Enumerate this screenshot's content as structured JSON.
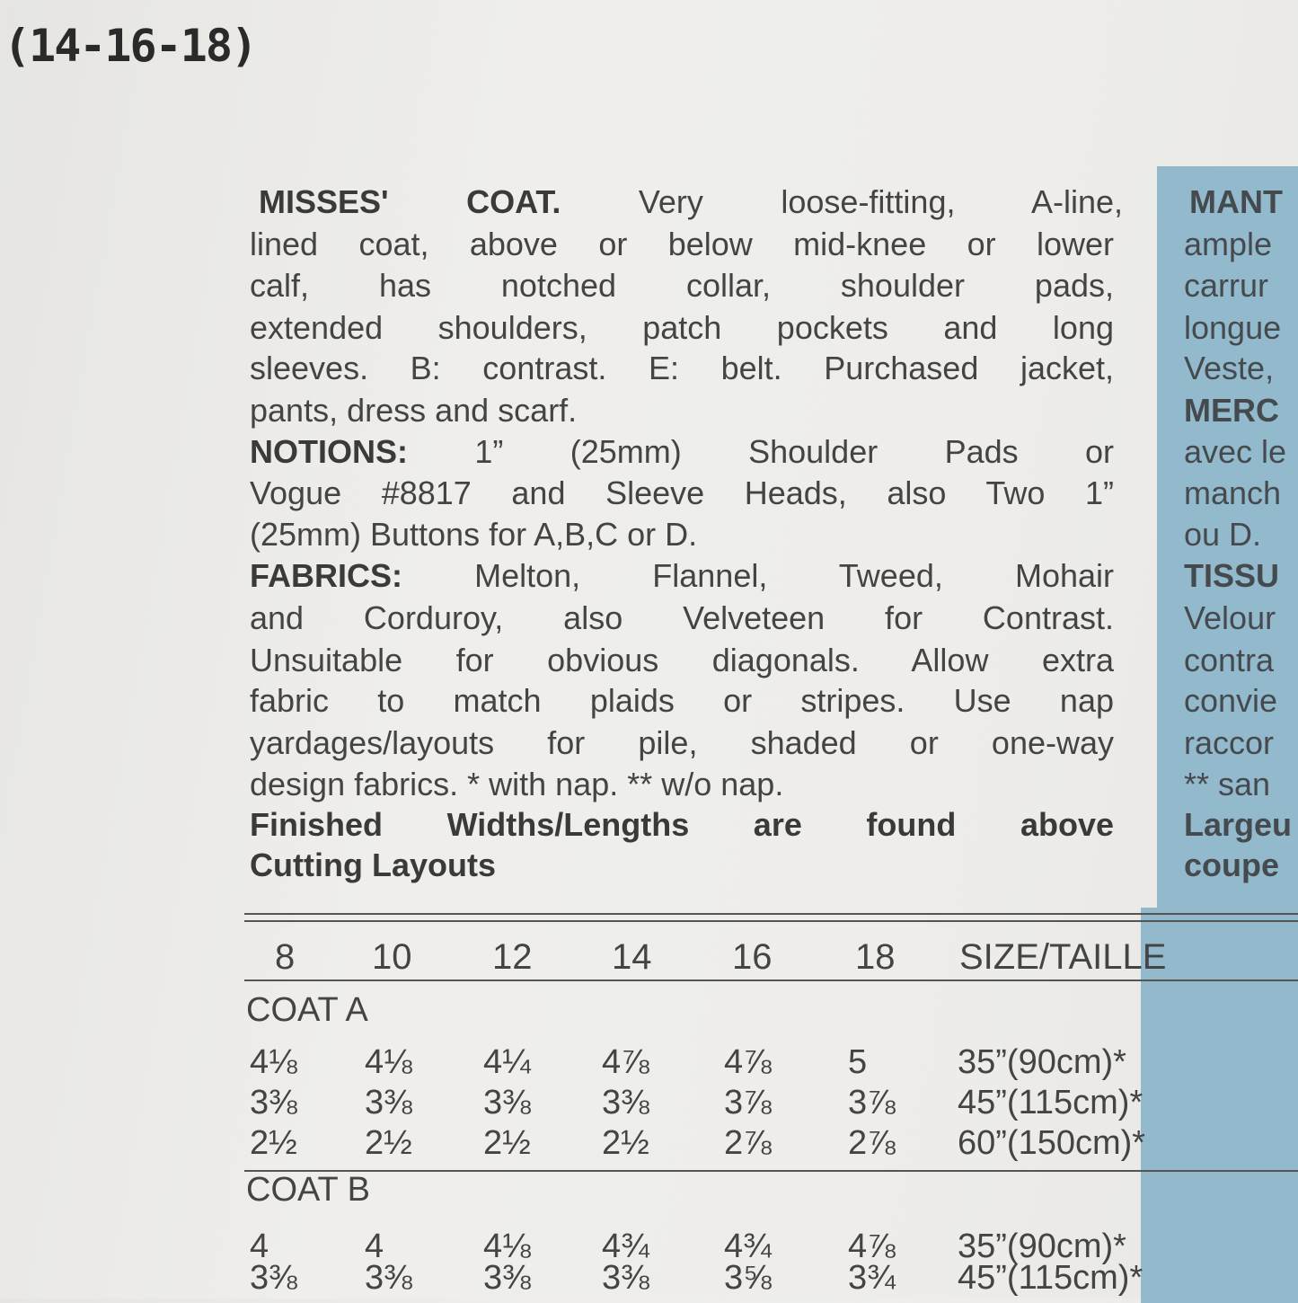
{
  "sizes_range": "(14-16-18)",
  "description": [
    {
      "bold": "MISSES' COAT.",
      "text": " Very loose-fitting, A-line,"
    },
    {
      "bold": "",
      "text": "lined coat, above or below mid-knee or lower"
    },
    {
      "bold": "",
      "text": "calf, has notched collar, shoulder pads,"
    },
    {
      "bold": "",
      "text": "extended shoulders, patch pockets and long"
    },
    {
      "bold": "",
      "text": "sleeves. B: contrast. E: belt. Purchased jacket,"
    },
    {
      "bold": "",
      "text": "pants, dress and scarf."
    },
    {
      "bold": "NOTIONS:",
      "text": " 1” (25mm) Shoulder Pads or"
    },
    {
      "bold": "",
      "text": "Vogue #8817 and Sleeve Heads, also Two 1”"
    },
    {
      "bold": "",
      "text": "(25mm) Buttons for A,B,C or D."
    },
    {
      "bold": "FABRICS:",
      "text": " Melton, Flannel, Tweed, Mohair"
    },
    {
      "bold": "",
      "text": "and Corduroy, also Velveteen for Contrast."
    },
    {
      "bold": "",
      "text": "Unsuitable for obvious diagonals. Allow extra"
    },
    {
      "bold": "",
      "text": "fabric to match plaids or stripes. Use nap"
    },
    {
      "bold": "",
      "text": "yardages/layouts for pile, shaded or one-way"
    },
    {
      "bold": "",
      "text": "design fabrics.    * with nap.    ** w/o nap."
    },
    {
      "bold": "Finished Widths/Lengths are found above",
      "text": ""
    },
    {
      "bold": "Cutting Layouts",
      "text": ""
    }
  ],
  "french_panel": [
    "MANT",
    "ample",
    "carrur",
    "longue",
    "Veste,",
    "MERC",
    "avec le",
    "manch",
    "ou D.",
    "TISSU",
    "Velour",
    "contra",
    "convie",
    "raccor",
    "** san",
    "Largeu",
    "coupe"
  ],
  "table": {
    "sizes": [
      "8",
      "10",
      "12",
      "14",
      "16",
      "18"
    ],
    "size_header": "SIZE/TAILLE",
    "sections": [
      {
        "name": "COAT A",
        "rows": [
          {
            "values": [
              "4⅛",
              "4⅛",
              "4¼",
              "4⅞",
              "4⅞",
              "5"
            ],
            "width": "35”(90cm)*"
          },
          {
            "values": [
              "3⅜",
              "3⅜",
              "3⅜",
              "3⅜",
              "3⅞",
              "3⅞"
            ],
            "width": "45”(115cm)*"
          },
          {
            "values": [
              "2½",
              "2½",
              "2½",
              "2½",
              "2⅞",
              "2⅞"
            ],
            "width": "60”(150cm)*"
          }
        ]
      },
      {
        "name": "COAT B",
        "rows": [
          {
            "values": [
              "4",
              "4",
              "4⅛",
              "4¾",
              "4¾",
              "4⅞"
            ],
            "width": "35”(90cm)*"
          },
          {
            "values": [
              "3⅜",
              "3⅜",
              "3⅜",
              "3⅜",
              "3⅝",
              "3¾"
            ],
            "width": "45”(115cm)*"
          }
        ]
      }
    ]
  },
  "colors": {
    "panel_blue": "#93b9cc",
    "paper": "#eeede9"
  }
}
